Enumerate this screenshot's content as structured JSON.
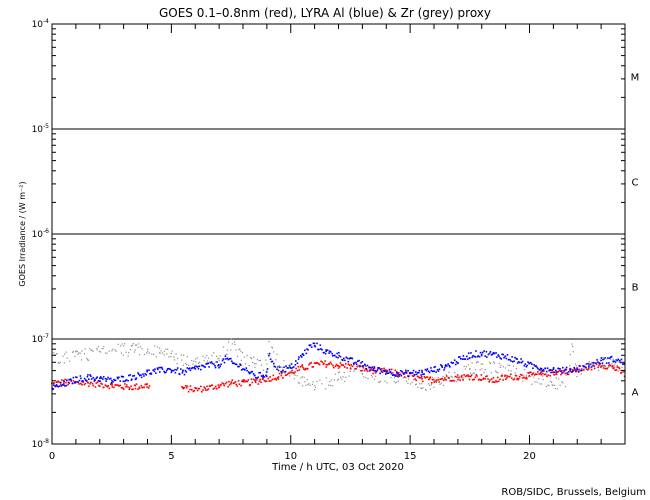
{
  "chart_data": {
    "type": "scatter",
    "title": "GOES 0.1–0.8nm (red), LYRA Al (blue) & Zr (grey) proxy",
    "xlabel": "Time / h UTC, 03 Oct 2020",
    "ylabel": "GOES Irradiance / (W m⁻²)",
    "credit": "ROB/SIDC, Brussels, Belgium",
    "x_unit": "hours UTC",
    "xlim": [
      0,
      24
    ],
    "ylim": [
      1e-08,
      0.0001
    ],
    "yscale": "log",
    "x_ticks": [
      0,
      5,
      10,
      15,
      20
    ],
    "x_tick_labels": [
      "0",
      "5",
      "10",
      "15",
      "20"
    ],
    "y_ticks": [
      1e-08,
      1e-07,
      1e-06,
      1e-05,
      0.0001
    ],
    "y_tick_labels": [
      {
        "base": "10",
        "exp": "-8"
      },
      {
        "base": "10",
        "exp": "-7"
      },
      {
        "base": "10",
        "exp": "-6"
      },
      {
        "base": "10",
        "exp": "-5"
      },
      {
        "base": "10",
        "exp": "-4"
      }
    ],
    "flare_class_labels": [
      {
        "label": "A",
        "y": 3.16e-08
      },
      {
        "label": "B",
        "y": 3.16e-07
      },
      {
        "label": "C",
        "y": 3.16e-06
      },
      {
        "label": "M",
        "y": 3.16e-05
      }
    ],
    "threshold_lines": [
      1e-07,
      1e-06,
      1e-05
    ],
    "series": [
      {
        "name": "GOES 0.1–0.8nm",
        "color": "#ff0000",
        "x": [
          0.0,
          0.5,
          1.0,
          1.5,
          2.0,
          2.5,
          3.0,
          3.5,
          4.0,
          5.5,
          6.0,
          6.5,
          7.0,
          7.5,
          8.0,
          8.5,
          9.0,
          9.5,
          10.0,
          10.5,
          11.0,
          11.5,
          12.0,
          12.5,
          13.0,
          13.5,
          14.0,
          14.5,
          15.0,
          15.5,
          16.0,
          16.5,
          17.0,
          17.5,
          18.0,
          18.5,
          19.0,
          19.5,
          20.0,
          20.5,
          21.0,
          21.5,
          22.0,
          22.5,
          23.0,
          23.5,
          24.0
        ],
        "y": [
          3.7e-08,
          3.9e-08,
          3.8e-08,
          3.8e-08,
          3.7e-08,
          3.6e-08,
          3.5e-08,
          3.5e-08,
          3.6e-08,
          3.4e-08,
          3.3e-08,
          3.4e-08,
          3.6e-08,
          3.8e-08,
          3.8e-08,
          3.9e-08,
          4.2e-08,
          4.4e-08,
          4.8e-08,
          5.3e-08,
          5.7e-08,
          5.8e-08,
          5.6e-08,
          5.5e-08,
          5.2e-08,
          5e-08,
          4.9e-08,
          4.7e-08,
          4.5e-08,
          4.1e-08,
          4.1e-08,
          4.2e-08,
          4.3e-08,
          4.4e-08,
          4.3e-08,
          4e-08,
          4.3e-08,
          4.4e-08,
          4.5e-08,
          4.6e-08,
          4.8e-08,
          4.9e-08,
          5e-08,
          5.4e-08,
          5.7e-08,
          5.4e-08,
          4.6e-08
        ]
      },
      {
        "name": "LYRA Al proxy",
        "color": "#0000ff",
        "x": [
          0.0,
          0.5,
          1.0,
          1.5,
          2.0,
          2.5,
          3.0,
          3.5,
          4.0,
          4.5,
          5.0,
          5.5,
          6.0,
          6.5,
          7.0,
          7.3,
          7.6,
          8.0,
          8.5,
          9.0,
          9.1,
          9.5,
          10.0,
          10.5,
          10.8,
          11.0,
          11.5,
          12.0,
          12.5,
          13.0,
          13.5,
          14.0,
          14.5,
          15.0,
          15.5,
          16.0,
          16.5,
          17.0,
          17.5,
          18.0,
          18.5,
          19.0,
          19.5,
          20.0,
          20.5,
          21.0,
          21.5,
          22.0,
          22.5,
          23.0,
          23.5,
          24.0
        ],
        "y": [
          3.4e-08,
          3.7e-08,
          4.1e-08,
          4.3e-08,
          4.2e-08,
          4e-08,
          4.2e-08,
          4.4e-08,
          4.8e-08,
          5e-08,
          5.1e-08,
          4.8e-08,
          5.2e-08,
          5.6e-08,
          5.7e-08,
          6.5e-08,
          5.8e-08,
          5.4e-08,
          4.4e-08,
          4.6e-08,
          6.8e-08,
          5.1e-08,
          5.3e-08,
          7e-08,
          8.5e-08,
          8.8e-08,
          7.5e-08,
          7e-08,
          6.2e-08,
          5.7e-08,
          5.1e-08,
          4.9e-08,
          4.7e-08,
          4.7e-08,
          4.8e-08,
          5.1e-08,
          5.5e-08,
          6.2e-08,
          7e-08,
          7.3e-08,
          7.1e-08,
          6.8e-08,
          6.2e-08,
          5.6e-08,
          5.3e-08,
          5.1e-08,
          5e-08,
          5.2e-08,
          5.6e-08,
          6.2e-08,
          6.4e-08,
          5.9e-08
        ]
      },
      {
        "name": "LYRA Zr proxy",
        "color": "#8c8c8c",
        "x": [
          0.0,
          0.5,
          1.0,
          1.5,
          2.0,
          2.5,
          3.0,
          3.5,
          4.0,
          4.5,
          5.0,
          5.5,
          6.0,
          6.5,
          7.0,
          7.5,
          8.0,
          8.5,
          9.0,
          9.1,
          9.5,
          10.0,
          10.5,
          11.0,
          11.5,
          12.0,
          12.5,
          13.0,
          13.5,
          14.0,
          14.5,
          15.0,
          15.5,
          16.0,
          16.5,
          17.0,
          17.5,
          18.0,
          18.5,
          19.0,
          19.5,
          20.0,
          20.5,
          21.0,
          21.5,
          21.8,
          22.0,
          22.5,
          23.0,
          23.5,
          24.0
        ],
        "y": [
          6.8e-08,
          6.5e-08,
          7.2e-08,
          7e-08,
          7.5e-08,
          7.7e-08,
          7.9e-08,
          7.9e-08,
          7.8e-08,
          7.5e-08,
          7e-08,
          6.2e-08,
          5.8e-08,
          6.2e-08,
          6.8e-08,
          9e-08,
          6.5e-08,
          5.8e-08,
          5.5e-08,
          9.5e-08,
          6e-08,
          5e-08,
          4e-08,
          3.6e-08,
          3.8e-08,
          4.2e-08,
          4.8e-08,
          5e-08,
          4.5e-08,
          4.2e-08,
          4.3e-08,
          4.1e-08,
          3.7e-08,
          3.8e-08,
          4.1e-08,
          4.5e-08,
          5.2e-08,
          5.5e-08,
          5.3e-08,
          5e-08,
          4.7e-08,
          4.3e-08,
          4e-08,
          3.8e-08,
          3.6e-08,
          8.5e-08,
          4.8e-08,
          5.5e-08,
          5.8e-08,
          6e-08,
          5.2e-08
        ]
      }
    ]
  }
}
